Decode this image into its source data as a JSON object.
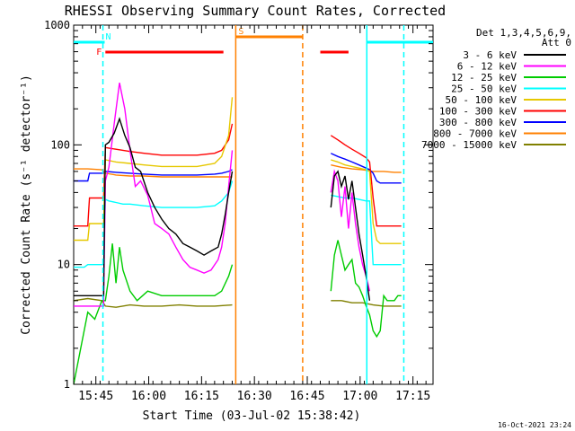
{
  "chart_data": {
    "type": "line",
    "title": "RHESSI Observing Summary Count Rates, Corrected",
    "xlabel": "Start Time (03-Jul-02 15:38:42)",
    "ylabel": "Corrected Count Rate (s⁻¹ detector⁻¹)",
    "yscale": "log",
    "ylim": [
      1,
      1000
    ],
    "xlim_minutes": [
      0,
      102
    ],
    "x_unit": "minutes after 15:38:42",
    "x_ticks": [
      {
        "label": "15:45",
        "t": 6.3
      },
      {
        "label": "16:00",
        "t": 21.3
      },
      {
        "label": "16:15",
        "t": 36.3
      },
      {
        "label": "16:30",
        "t": 51.3
      },
      {
        "label": "16:45",
        "t": 66.3
      },
      {
        "label": "17:00",
        "t": 81.3
      },
      {
        "label": "17:15",
        "t": 96.3
      }
    ],
    "y_ticks": [
      {
        "label": "1",
        "v": 1
      },
      {
        "label": "10",
        "v": 10
      },
      {
        "label": "100",
        "v": 100
      },
      {
        "label": "1000",
        "v": 1000
      }
    ],
    "legend_header": [
      "Det 1,3,4,5,6,9,",
      "Att 0"
    ],
    "legend_position": "right",
    "footer_timestamp": "16-Oct-2021 23:24",
    "series": [
      {
        "name": "3 - 6 keV",
        "color": "#000000",
        "x": [
          0,
          8.5,
          9,
          10,
          11.5,
          13,
          14.5,
          16,
          17.5,
          19,
          21,
          23,
          25,
          27,
          29,
          31,
          33,
          35,
          37,
          39,
          41,
          42,
          43,
          44,
          45
        ],
        "y": [
          5.5,
          5.5,
          100,
          105,
          125,
          165,
          120,
          95,
          65,
          60,
          40,
          30,
          24,
          20,
          18,
          15,
          14,
          13,
          12,
          13,
          14,
          18,
          26,
          40,
          60
        ],
        "x2": [
          73,
          74,
          75,
          76,
          77,
          78,
          79,
          80,
          81,
          82,
          83,
          84
        ],
        "y2": [
          30,
          55,
          60,
          45,
          55,
          35,
          50,
          30,
          18,
          12,
          8,
          5
        ]
      },
      {
        "name": "6 - 12 keV",
        "color": "#ff00ff",
        "x": [
          0,
          8.5,
          9,
          10,
          11.5,
          13,
          14.5,
          16,
          17.5,
          19,
          21,
          23,
          25,
          27,
          29,
          31,
          33,
          35,
          37,
          39,
          41,
          42,
          43,
          44,
          45
        ],
        "y": [
          4.5,
          4.5,
          50,
          65,
          150,
          330,
          200,
          90,
          45,
          50,
          38,
          22,
          20,
          18,
          14,
          11,
          9.5,
          9,
          8.5,
          9,
          11,
          14,
          22,
          45,
          90
        ],
        "x2": [
          73,
          74,
          75,
          76,
          77,
          78,
          79,
          80,
          81,
          82,
          83,
          84
        ],
        "y2": [
          40,
          60,
          50,
          25,
          45,
          20,
          40,
          22,
          14,
          10,
          8,
          6
        ]
      },
      {
        "name": "12 - 25 keV",
        "color": "#00cc00",
        "x": [
          0,
          4,
          6,
          8,
          9,
          10,
          11,
          12,
          13,
          14,
          16,
          18,
          21,
          25,
          30,
          35,
          40,
          42,
          44,
          45
        ],
        "y": [
          1,
          4,
          3.5,
          5,
          5,
          8,
          15,
          7,
          14,
          9,
          6,
          5,
          6,
          5.5,
          5.5,
          5.5,
          5.5,
          6,
          8,
          10
        ],
        "x2": [
          73,
          74,
          75,
          76,
          77,
          78,
          79,
          80,
          81,
          82,
          83,
          84,
          85,
          86,
          87,
          88,
          89,
          90,
          91,
          92,
          93
        ],
        "y2": [
          6,
          12,
          16,
          12,
          9,
          10,
          11,
          7,
          6.5,
          5.5,
          4.5,
          3.8,
          2.8,
          2.5,
          2.8,
          5.5,
          5,
          5,
          5,
          5.5,
          5.5
        ]
      },
      {
        "name": "25 - 50 keV",
        "color": "#00ffff",
        "x": [
          0,
          3,
          4,
          5,
          6,
          7,
          8,
          8.5,
          9,
          10,
          12,
          14,
          16,
          20,
          25,
          30,
          35,
          40,
          42,
          44,
          45
        ],
        "y": [
          9.5,
          9.5,
          10,
          10,
          10,
          10,
          10,
          10,
          35,
          34,
          33,
          32,
          32,
          31,
          30,
          30,
          30,
          31,
          34,
          40,
          50
        ],
        "x2": [
          73,
          75,
          77,
          79,
          81,
          83,
          84,
          85,
          86,
          87,
          88,
          89,
          90,
          91,
          92,
          93
        ],
        "y2": [
          38,
          37,
          36,
          36,
          35,
          34,
          34,
          10,
          10,
          10,
          10,
          10,
          10,
          10,
          10,
          10
        ]
      },
      {
        "name": "50 - 100 keV",
        "color": "#e6c800",
        "x": [
          0,
          4,
          4.5,
          8,
          8.5,
          9,
          12,
          16,
          20,
          25,
          30,
          35,
          40,
          42,
          44,
          45
        ],
        "y": [
          16,
          16,
          22,
          22,
          22,
          75,
          72,
          70,
          68,
          66,
          66,
          66,
          70,
          80,
          120,
          250
        ],
        "x2": [
          73,
          75,
          77,
          79,
          81,
          83,
          84,
          85,
          86,
          87,
          88,
          89,
          90,
          91,
          92,
          93
        ],
        "y2": [
          75,
          72,
          68,
          66,
          64,
          62,
          60,
          22,
          16,
          15,
          15,
          15,
          15,
          15,
          15,
          15
        ]
      },
      {
        "name": "100 - 300 keV",
        "color": "#ff0000",
        "x": [
          0,
          4,
          4.5,
          8,
          8.5,
          9,
          12,
          16,
          20,
          25,
          30,
          35,
          40,
          42,
          44,
          45
        ],
        "y": [
          21,
          21,
          36,
          36,
          36,
          95,
          92,
          88,
          85,
          82,
          82,
          82,
          85,
          90,
          110,
          150
        ],
        "x2": [
          73,
          75,
          77,
          79,
          81,
          83,
          84,
          85,
          86,
          87,
          88,
          89,
          90,
          91,
          92,
          93
        ],
        "y2": [
          120,
          110,
          100,
          92,
          85,
          78,
          72,
          36,
          21,
          21,
          21,
          21,
          21,
          21,
          21,
          21
        ]
      },
      {
        "name": "300 - 800 keV",
        "color": "#0000ff",
        "x": [
          0,
          4,
          4.5,
          8,
          8.5,
          9,
          12,
          16,
          20,
          25,
          30,
          35,
          40,
          42,
          44,
          45
        ],
        "y": [
          50,
          50,
          58,
          58,
          58,
          60,
          59,
          58,
          57,
          56,
          56,
          56,
          57,
          58,
          60,
          62
        ],
        "x2": [
          73,
          75,
          77,
          79,
          81,
          83,
          84,
          85,
          86,
          87,
          88,
          89,
          90,
          91,
          92,
          93
        ],
        "y2": [
          85,
          80,
          76,
          72,
          68,
          64,
          62,
          58,
          50,
          48,
          48,
          48,
          48,
          48,
          48,
          48
        ]
      },
      {
        "name": "800 - 7000 keV",
        "color": "#ff8000",
        "x": [
          0,
          4,
          8,
          9,
          12,
          16,
          20,
          25,
          30,
          35,
          40,
          45
        ],
        "y": [
          63,
          63,
          62,
          58,
          56,
          55,
          55,
          54,
          54,
          54,
          54,
          54
        ],
        "x2": [
          73,
          76,
          79,
          82,
          85,
          88,
          91,
          93
        ],
        "y2": [
          68,
          65,
          63,
          62,
          60,
          60,
          59,
          59
        ]
      },
      {
        "name": "7000 - 15000 keV",
        "color": "#808000",
        "x": [
          0,
          4,
          8,
          9,
          12,
          16,
          20,
          25,
          30,
          35,
          40,
          45
        ],
        "y": [
          5,
          5.2,
          5,
          4.5,
          4.4,
          4.6,
          4.5,
          4.5,
          4.6,
          4.5,
          4.5,
          4.6
        ],
        "x2": [
          73,
          76,
          79,
          82,
          85,
          88,
          91,
          93
        ],
        "y2": [
          5,
          5,
          4.8,
          4.8,
          4.6,
          4.5,
          4.5,
          4.5
        ]
      }
    ],
    "vertical_lines": [
      {
        "t": 8.3,
        "color": "#00ffff",
        "style": "dashed"
      },
      {
        "t": 46.0,
        "color": "#ff8000",
        "style": "solid"
      },
      {
        "t": 65.0,
        "color": "#ff8000",
        "style": "dashed"
      },
      {
        "t": 83.2,
        "color": "#00ffff",
        "style": "solid"
      },
      {
        "t": 93.7,
        "color": "#00ffff",
        "style": "dashed"
      }
    ],
    "flag_bars": [
      {
        "label": "",
        "t0": 0,
        "t1": 8.3,
        "color": "#00ffff"
      },
      {
        "label": "N",
        "t0": 8.3,
        "t1": 8.8,
        "color": "#00ffff"
      },
      {
        "label": "F",
        "t0": 9.0,
        "t1": 42.5,
        "color": "#ff0000"
      },
      {
        "label": "S",
        "t0": 46.0,
        "t1": 65.0,
        "color": "#ff8000"
      },
      {
        "label": "",
        "t0": 70.0,
        "t1": 78.0,
        "color": "#ff0000"
      },
      {
        "label": "",
        "t0": 83.2,
        "t1": 102,
        "color": "#00ffff"
      }
    ]
  }
}
